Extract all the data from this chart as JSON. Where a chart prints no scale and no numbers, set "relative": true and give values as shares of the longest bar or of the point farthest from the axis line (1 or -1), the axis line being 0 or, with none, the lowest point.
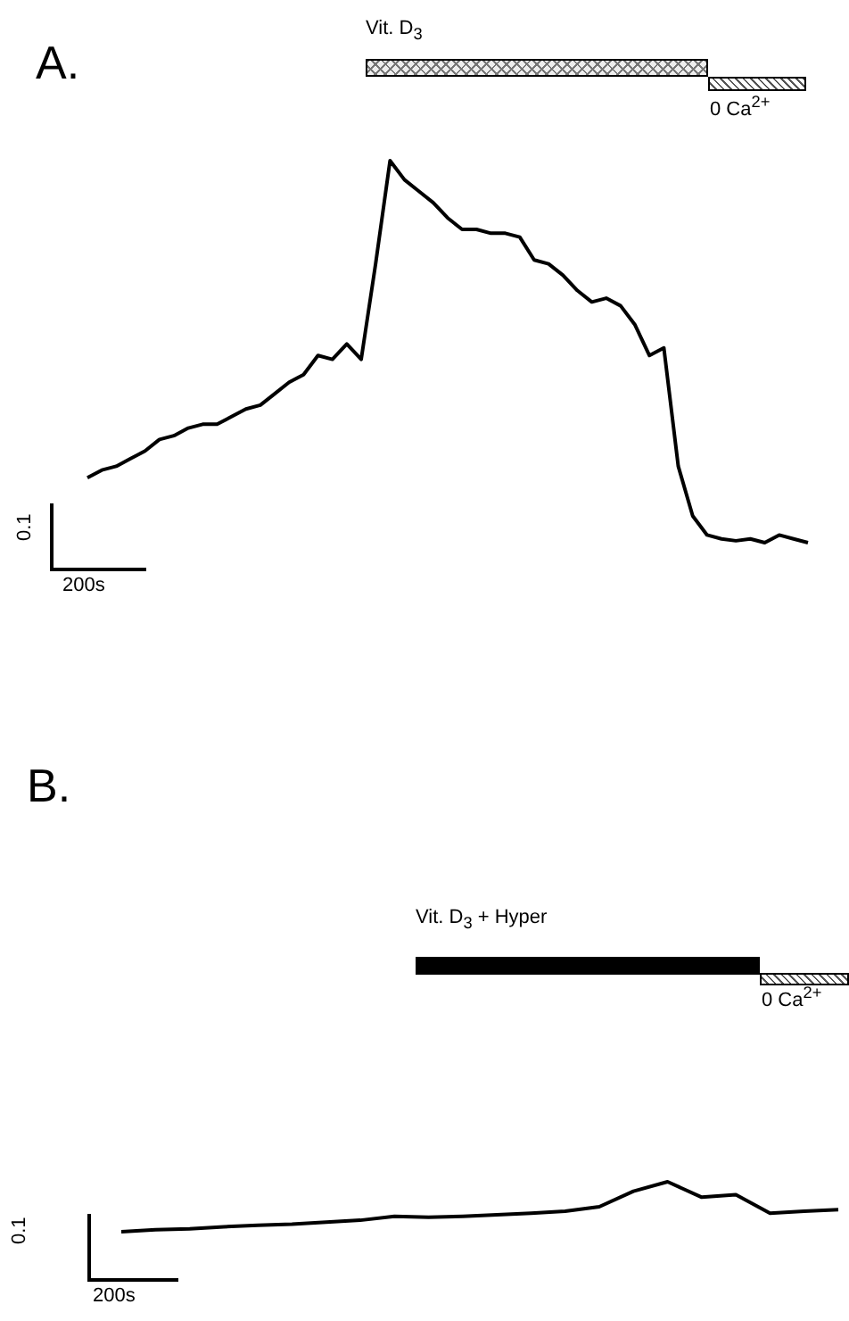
{
  "chart_data": [
    {
      "type": "line",
      "title": "A.",
      "relative": true,
      "annotations": [
        "Vit. D$_{3}$",
        "0 Ca$^{2+}$",
        "0.1",
        "200s"
      ],
      "categories": [
        null,
        null,
        null,
        null,
        null,
        null,
        null,
        null,
        null,
        null,
        null,
        null,
        null,
        null,
        null,
        null,
        null,
        null,
        null,
        null,
        null,
        null,
        null,
        null,
        null,
        null,
        null,
        null,
        null,
        null,
        null,
        null,
        null,
        null,
        null,
        null,
        null,
        null,
        null,
        null,
        null,
        null,
        null,
        null,
        null,
        null,
        null,
        null,
        null,
        null,
        null
      ],
      "series": [
        {
          "color": "#000000",
          "values": [
            0.17,
            0.19,
            0.2,
            0.22,
            0.24,
            0.27,
            0.28,
            0.3,
            0.31,
            0.31,
            0.33,
            0.35,
            0.36,
            0.39,
            0.42,
            0.44,
            0.49,
            0.48,
            0.52,
            0.48,
            0.73,
            1,
            0.95,
            0.92,
            0.89,
            0.85,
            0.82,
            0.82,
            0.81,
            0.81,
            0.8,
            0.74,
            0.73,
            0.7,
            0.66,
            0.63,
            0.64,
            0.62,
            0.57,
            0.49,
            0.51,
            0.2,
            0.07,
            0.02,
            0.01,
            0.005,
            0.01,
            0,
            0.02,
            0.01,
            0
          ]
        }
      ]
    },
    {
      "type": "line",
      "title": "B.",
      "relative": true,
      "annotations": [
        "Vit. D$_{3}$ + Hyper",
        "0 Ca$^{2+}$",
        "0.1",
        "200s"
      ],
      "categories": [
        null,
        null,
        null,
        null,
        null,
        null,
        null,
        null,
        null,
        null,
        null,
        null,
        null,
        null,
        null,
        null,
        null,
        null,
        null,
        null,
        null,
        null
      ],
      "series": [
        {
          "color": "#000000",
          "values": [
            0,
            0.04,
            0.06,
            0.1,
            0.13,
            0.15,
            0.19,
            0.23,
            0.31,
            0.29,
            0.31,
            0.34,
            0.37,
            0.41,
            0.5,
            0.81,
            1,
            0.69,
            0.74,
            0.37,
            0.41,
            0.44
          ]
        }
      ]
    }
  ]
}
